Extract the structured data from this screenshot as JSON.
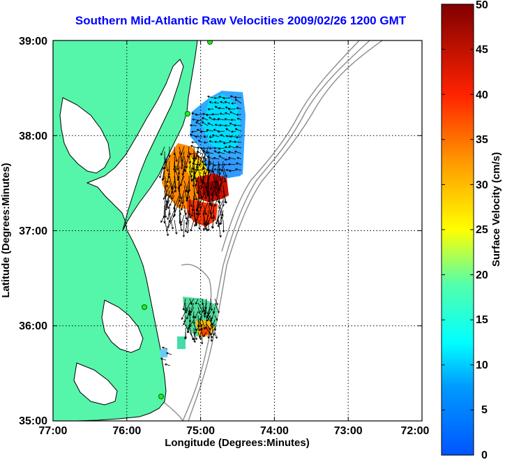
{
  "title": "Southern Mid-Atlantic Raw Velocities 2009/02/26 1200 GMT",
  "x_axis": {
    "label": "Longitude (Degrees:Minutes)",
    "ticks": [
      "77:00",
      "76:00",
      "75:00",
      "74:00",
      "73:00",
      "72:00"
    ],
    "range": [
      -77,
      -72
    ]
  },
  "y_axis": {
    "label": "Latitude (Degrees:Minutes)",
    "ticks": [
      "39:00",
      "38:00",
      "37:00",
      "36:00",
      "35:00"
    ],
    "range": [
      35,
      39
    ]
  },
  "colorbar": {
    "label": "Surface Velocity (cm/s)",
    "ticks": [
      "50",
      "45",
      "40",
      "35",
      "30",
      "25",
      "20",
      "15",
      "10",
      "5",
      "0"
    ],
    "range": [
      0,
      50
    ]
  },
  "colors": {
    "land": "#55f6a9",
    "title": "#0000ff",
    "bathymetry": "#8c8c8c"
  },
  "grid": true
}
